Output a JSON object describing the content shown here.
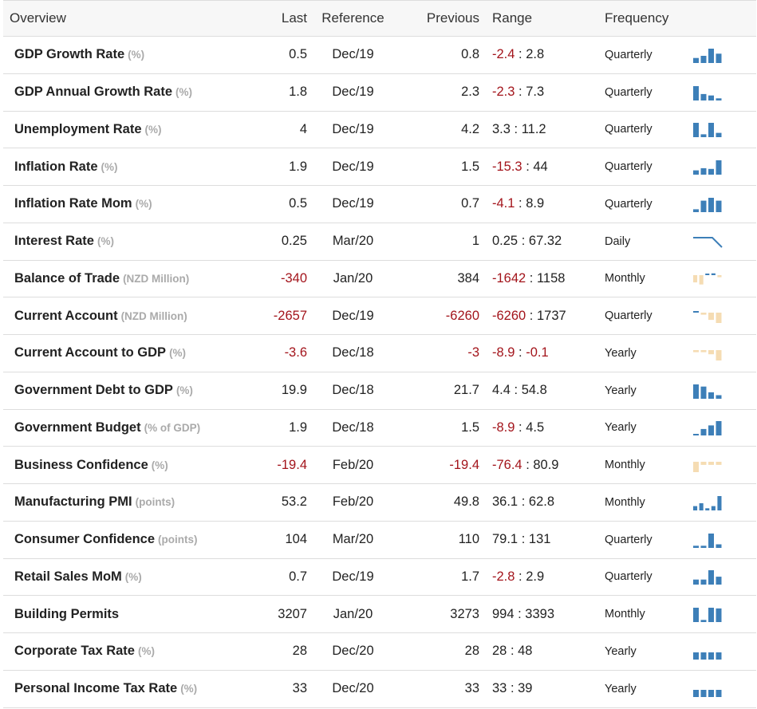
{
  "header": {
    "overview": "Overview",
    "last": "Last",
    "reference": "Reference",
    "previous": "Previous",
    "range": "Range",
    "frequency": "Frequency"
  },
  "colors": {
    "negative": "#a3141b",
    "spark_blue": "#3d7fb8",
    "spark_tan": "#f5dcb3",
    "unit_gray": "#aaaaaa"
  },
  "rows": [
    {
      "name": "GDP Growth Rate",
      "unit": "(%)",
      "last": "0.5",
      "last_neg": false,
      "reference": "Dec/19",
      "previous": "0.8",
      "previous_neg": false,
      "range_low": "-2.4",
      "range_low_neg": true,
      "range_high": "2.8",
      "range_high_neg": false,
      "frequency": "Quarterly",
      "spark": {
        "kind": "bars",
        "color": "blue",
        "heights": [
          0.35,
          0.5,
          1.0,
          0.65
        ]
      }
    },
    {
      "name": "GDP Annual Growth Rate",
      "unit": "(%)",
      "last": "1.8",
      "last_neg": false,
      "reference": "Dec/19",
      "previous": "2.3",
      "previous_neg": false,
      "range_low": "-2.3",
      "range_low_neg": true,
      "range_high": "7.3",
      "range_high_neg": false,
      "frequency": "Quarterly",
      "spark": {
        "kind": "bars",
        "color": "blue",
        "heights": [
          1.0,
          0.45,
          0.35,
          0.15
        ]
      }
    },
    {
      "name": "Unemployment Rate",
      "unit": "(%)",
      "last": "4",
      "last_neg": false,
      "reference": "Dec/19",
      "previous": "4.2",
      "previous_neg": false,
      "range_low": "3.3",
      "range_low_neg": false,
      "range_high": "11.2",
      "range_high_neg": false,
      "frequency": "Quarterly",
      "spark": {
        "kind": "bars",
        "color": "blue",
        "heights": [
          1.0,
          0.2,
          1.0,
          0.3
        ]
      }
    },
    {
      "name": "Inflation Rate",
      "unit": "(%)",
      "last": "1.9",
      "last_neg": false,
      "reference": "Dec/19",
      "previous": "1.5",
      "previous_neg": false,
      "range_low": "-15.3",
      "range_low_neg": true,
      "range_high": "44",
      "range_high_neg": false,
      "frequency": "Quarterly",
      "spark": {
        "kind": "bars",
        "color": "blue",
        "heights": [
          0.3,
          0.45,
          0.4,
          1.0
        ]
      }
    },
    {
      "name": "Inflation Rate Mom",
      "unit": "(%)",
      "last": "0.5",
      "last_neg": false,
      "reference": "Dec/19",
      "previous": "0.7",
      "previous_neg": false,
      "range_low": "-4.1",
      "range_low_neg": true,
      "range_high": "8.9",
      "range_high_neg": false,
      "frequency": "Quarterly",
      "spark": {
        "kind": "bars",
        "color": "blue",
        "heights": [
          0.2,
          0.8,
          1.0,
          0.8
        ]
      }
    },
    {
      "name": "Interest Rate",
      "unit": "(%)",
      "last": "0.25",
      "last_neg": false,
      "reference": "Mar/20",
      "previous": "1",
      "previous_neg": false,
      "range_low": "0.25",
      "range_low_neg": false,
      "range_high": "67.32",
      "range_high_neg": false,
      "frequency": "Daily",
      "spark": {
        "kind": "line",
        "color": "blue",
        "points": [
          1,
          1,
          1,
          0
        ]
      }
    },
    {
      "name": "Balance of Trade",
      "unit": "(NZD Million)",
      "last": "-340",
      "last_neg": true,
      "reference": "Jan/20",
      "previous": "384",
      "previous_neg": false,
      "range_low": "-1642",
      "range_low_neg": true,
      "range_high": "1158",
      "range_high_neg": false,
      "frequency": "Monthly",
      "spark": {
        "kind": "bars",
        "color": "mixed",
        "signed": [
          -0.7,
          -0.9,
          0.25,
          0.45,
          -0.2
        ]
      }
    },
    {
      "name": "Current Account",
      "unit": "(NZD Million)",
      "last": "-2657",
      "last_neg": true,
      "reference": "Dec/19",
      "previous": "-6260",
      "previous_neg": true,
      "range_low": "-6260",
      "range_low_neg": true,
      "range_high": "1737",
      "range_high_neg": false,
      "frequency": "Quarterly",
      "spark": {
        "kind": "bars",
        "color": "mixed",
        "signed": [
          0.1,
          -0.2,
          -0.7,
          -1.0
        ]
      }
    },
    {
      "name": "Current Account to GDP",
      "unit": "(%)",
      "last": "-3.6",
      "last_neg": true,
      "reference": "Dec/18",
      "previous": "-3",
      "previous_neg": true,
      "range_low": "-8.9",
      "range_low_neg": true,
      "range_high": "-0.1",
      "range_high_neg": true,
      "frequency": "Yearly",
      "spark": {
        "kind": "bars",
        "color": "tan",
        "signed": [
          -0.2,
          -0.2,
          -0.4,
          -1.0
        ]
      }
    },
    {
      "name": "Government Debt to GDP",
      "unit": "(%)",
      "last": "19.9",
      "last_neg": false,
      "reference": "Dec/18",
      "previous": "21.7",
      "previous_neg": false,
      "range_low": "4.4",
      "range_low_neg": false,
      "range_high": "54.8",
      "range_high_neg": false,
      "frequency": "Yearly",
      "spark": {
        "kind": "bars",
        "color": "blue",
        "heights": [
          1.0,
          0.85,
          0.45,
          0.25
        ]
      }
    },
    {
      "name": "Government Budget",
      "unit": "(% of GDP)",
      "last": "1.9",
      "last_neg": false,
      "reference": "Dec/18",
      "previous": "1.5",
      "previous_neg": false,
      "range_low": "-8.9",
      "range_low_neg": true,
      "range_high": "4.5",
      "range_high_neg": false,
      "frequency": "Yearly",
      "spark": {
        "kind": "bars",
        "color": "blue",
        "heights": [
          0.1,
          0.45,
          0.7,
          1.0
        ]
      }
    },
    {
      "name": "Business Confidence",
      "unit": "(%)",
      "last": "-19.4",
      "last_neg": true,
      "reference": "Feb/20",
      "previous": "-19.4",
      "previous_neg": true,
      "range_low": "-76.4",
      "range_low_neg": true,
      "range_high": "80.9",
      "range_high_neg": false,
      "frequency": "Monthly",
      "spark": {
        "kind": "bars",
        "color": "tan",
        "signed": [
          -1.0,
          -0.3,
          -0.3,
          -0.3
        ]
      }
    },
    {
      "name": "Manufacturing PMI",
      "unit": "(points)",
      "last": "53.2",
      "last_neg": false,
      "reference": "Feb/20",
      "previous": "49.8",
      "previous_neg": false,
      "range_low": "36.1",
      "range_low_neg": false,
      "range_high": "62.8",
      "range_high_neg": false,
      "frequency": "Monthly",
      "spark": {
        "kind": "bars",
        "color": "blue",
        "heights": [
          0.3,
          0.5,
          0.15,
          0.3,
          1.0
        ]
      }
    },
    {
      "name": "Consumer Confidence",
      "unit": "(points)",
      "last": "104",
      "last_neg": false,
      "reference": "Mar/20",
      "previous": "110",
      "previous_neg": false,
      "range_low": "79.1",
      "range_low_neg": false,
      "range_high": "131",
      "range_high_neg": false,
      "frequency": "Quarterly",
      "spark": {
        "kind": "bars",
        "color": "blue",
        "heights": [
          0.15,
          0.15,
          1.0,
          0.25
        ]
      }
    },
    {
      "name": "Retail Sales MoM",
      "unit": "(%)",
      "last": "0.7",
      "last_neg": false,
      "reference": "Dec/19",
      "previous": "1.7",
      "previous_neg": false,
      "range_low": "-2.8",
      "range_low_neg": true,
      "range_high": "2.9",
      "range_high_neg": false,
      "frequency": "Quarterly",
      "spark": {
        "kind": "bars",
        "color": "blue",
        "heights": [
          0.35,
          0.35,
          1.0,
          0.55
        ]
      }
    },
    {
      "name": "Building Permits",
      "unit": "",
      "last": "3207",
      "last_neg": false,
      "reference": "Jan/20",
      "previous": "3273",
      "previous_neg": false,
      "range_low": "994",
      "range_low_neg": false,
      "range_high": "3393",
      "range_high_neg": false,
      "frequency": "Monthly",
      "spark": {
        "kind": "bars",
        "color": "blue",
        "heights": [
          1.0,
          0.15,
          1.0,
          0.95
        ]
      }
    },
    {
      "name": "Corporate Tax Rate",
      "unit": "(%)",
      "last": "28",
      "last_neg": false,
      "reference": "Dec/20",
      "previous": "28",
      "previous_neg": false,
      "range_low": "28",
      "range_low_neg": false,
      "range_high": "48",
      "range_high_neg": false,
      "frequency": "Yearly",
      "spark": {
        "kind": "bars",
        "color": "blue",
        "heights": [
          0.5,
          0.5,
          0.5,
          0.5
        ]
      }
    },
    {
      "name": "Personal Income Tax Rate",
      "unit": "(%)",
      "last": "33",
      "last_neg": false,
      "reference": "Dec/20",
      "previous": "33",
      "previous_neg": false,
      "range_low": "33",
      "range_low_neg": false,
      "range_high": "39",
      "range_high_neg": false,
      "frequency": "Yearly",
      "spark": {
        "kind": "bars",
        "color": "blue",
        "heights": [
          0.5,
          0.5,
          0.5,
          0.5
        ]
      }
    }
  ]
}
